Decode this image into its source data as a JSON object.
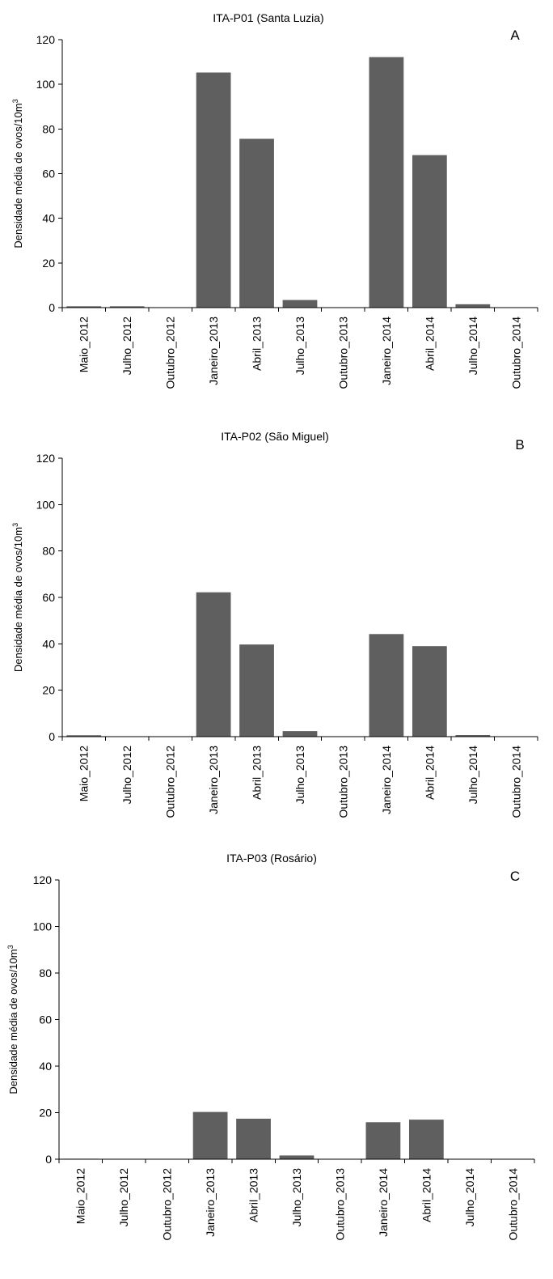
{
  "colors": {
    "bar": "#5f5f5f",
    "axis": "#000000",
    "background": "#ffffff"
  },
  "chart_data": [
    {
      "type": "bar",
      "title": "ITA-P01 (Santa Luzia)",
      "panel_label": "A",
      "ylabel": "Densidade média de ovos/10m³",
      "xlabel": "",
      "ylim": [
        0,
        120
      ],
      "yticks": [
        "0",
        "20",
        "40",
        "60",
        "80",
        "100",
        "120"
      ],
      "categories": [
        "Maio_2012",
        "Julho_2012",
        "Outubro_2012",
        "Janeiro_2013",
        "Abril_2013",
        "Julho_2013",
        "Outubro_2013",
        "Janeiro_2014",
        "Abril_2014",
        "Julho_2014",
        "Outubro_2014"
      ],
      "values": [
        0.6,
        0.6,
        0,
        105.3,
        75.6,
        3.4,
        0,
        112.2,
        68.3,
        1.5,
        0
      ],
      "grid": false
    },
    {
      "type": "bar",
      "title": "ITA-P02 (São Miguel)",
      "panel_label": "B",
      "ylabel": "Densidade média de ovos/10m³",
      "xlabel": "",
      "ylim": [
        0,
        120
      ],
      "yticks": [
        "0",
        "20",
        "40",
        "60",
        "80",
        "100",
        "120"
      ],
      "categories": [
        "Maio_2012",
        "Julho_2012",
        "Outubro_2012",
        "Janeiro_2013",
        "Abril_2013",
        "Julho_2013",
        "Outubro_2013",
        "Janeiro_2014",
        "Abril_2014",
        "Julho_2014",
        "Outubro_2014"
      ],
      "values": [
        0.6,
        0,
        0,
        62.2,
        39.7,
        2.4,
        0,
        44.2,
        39.0,
        0.7,
        0
      ],
      "grid": false
    },
    {
      "type": "bar",
      "title": "ITA-P03 (Rosário)",
      "panel_label": "C",
      "ylabel": "Densidade média de ovos/10m³",
      "xlabel": "",
      "ylim": [
        0,
        120
      ],
      "yticks": [
        "0",
        "20",
        "40",
        "60",
        "80",
        "100",
        "120"
      ],
      "categories": [
        "Maio_2012",
        "Julho_2012",
        "Outubro_2012",
        "Janeiro_2013",
        "Abril_2013",
        "Julho_2013",
        "Outubro_2013",
        "Janeiro_2014",
        "Abril_2014",
        "Julho_2014",
        "Outubro_2014"
      ],
      "values": [
        0.2,
        0,
        0,
        20.3,
        17.4,
        1.6,
        0,
        15.9,
        17.0,
        0,
        0
      ],
      "grid": false
    }
  ]
}
